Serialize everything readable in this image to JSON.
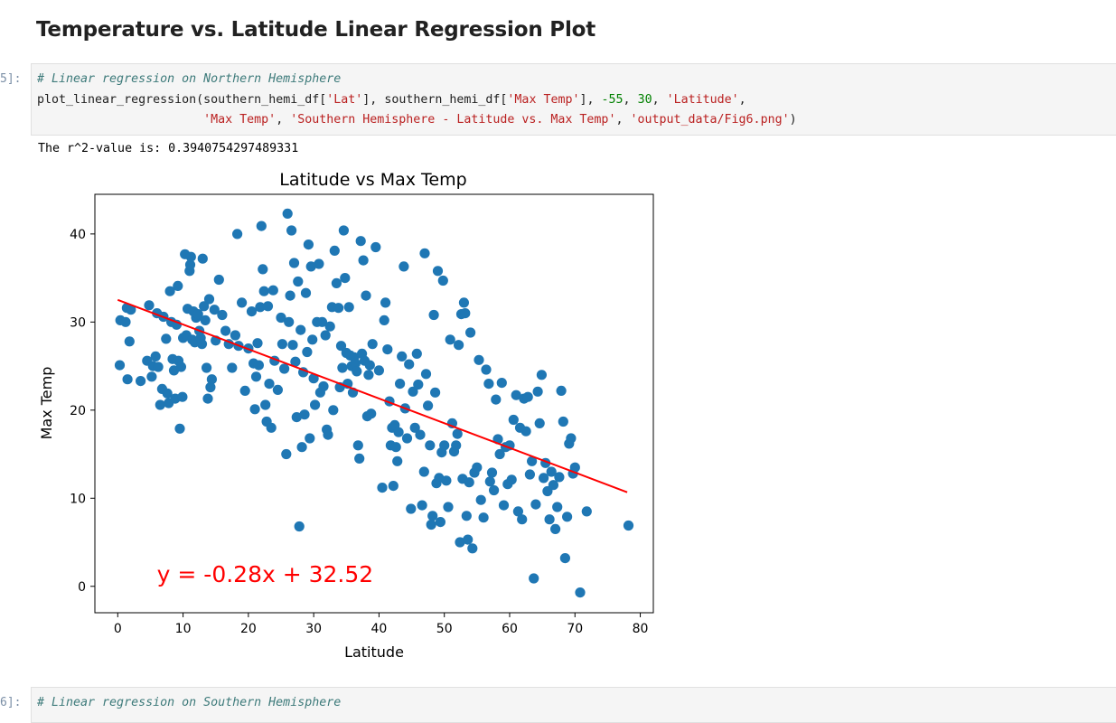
{
  "section_heading": "Temperature vs. Latitude Linear Regression Plot",
  "cell5": {
    "prompt": "5]:",
    "comment": "# Linear regression on Northern Hemisphere",
    "call_name": "plot_linear_regression",
    "arg_df": "southern_hemi_df",
    "arg_lat_key": "'Lat'",
    "arg_temp_key": "'Max Temp'",
    "arg_x_num": "-55",
    "arg_y_num": "30",
    "arg_xlabel": "'Latitude'",
    "arg_ylabel": "'Max Temp'",
    "arg_title": "'Southern Hemisphere - Latitude vs. Max Temp'",
    "arg_path": "'output_data/Fig6.png'"
  },
  "output_text": "The r^2-value is: 0.3940754297489331",
  "cell6": {
    "prompt": "6]:",
    "comment": "# Linear regression on Southern Hemisphere"
  },
  "colors": {
    "points": "#1f77b4",
    "line": "#ff0000",
    "annotation": "#ff0000"
  },
  "chart_data": {
    "type": "scatter",
    "title": "Latitude vs Max Temp",
    "xlabel": "Latitude",
    "ylabel": "Max Temp",
    "xlim": [
      -3.5,
      82
    ],
    "ylim": [
      -3,
      44.5
    ],
    "xticks": [
      0,
      10,
      20,
      30,
      40,
      50,
      60,
      70,
      80
    ],
    "yticks": [
      0,
      10,
      20,
      30,
      40
    ],
    "grid": false,
    "regression": {
      "slope": -0.28,
      "intercept": 32.52,
      "x_range": [
        0,
        78
      ]
    },
    "annotation": {
      "text": "y = -0.28x + 32.52",
      "x": 6,
      "y": 0.5
    },
    "points": [
      [
        0.4,
        30.2
      ],
      [
        0.3,
        25.1
      ],
      [
        1.2,
        30.0
      ],
      [
        1.4,
        31.6
      ],
      [
        1.8,
        27.8
      ],
      [
        2.0,
        31.4
      ],
      [
        1.5,
        23.5
      ],
      [
        3.5,
        23.3
      ],
      [
        4.5,
        25.6
      ],
      [
        4.8,
        31.9
      ],
      [
        5.2,
        23.8
      ],
      [
        5.4,
        25.0
      ],
      [
        5.8,
        26.1
      ],
      [
        6.0,
        31.0
      ],
      [
        6.2,
        24.9
      ],
      [
        6.5,
        20.6
      ],
      [
        6.8,
        22.4
      ],
      [
        7.0,
        30.6
      ],
      [
        7.4,
        28.1
      ],
      [
        7.6,
        21.9
      ],
      [
        7.8,
        20.8
      ],
      [
        8.0,
        33.5
      ],
      [
        8.2,
        30.0
      ],
      [
        8.4,
        25.8
      ],
      [
        8.6,
        24.5
      ],
      [
        8.8,
        21.3
      ],
      [
        9.0,
        29.7
      ],
      [
        9.2,
        34.1
      ],
      [
        9.3,
        25.6
      ],
      [
        9.5,
        17.9
      ],
      [
        9.7,
        24.9
      ],
      [
        9.9,
        21.5
      ],
      [
        10.0,
        28.2
      ],
      [
        10.3,
        37.7
      ],
      [
        10.5,
        28.5
      ],
      [
        10.7,
        31.5
      ],
      [
        11.0,
        35.8
      ],
      [
        11.1,
        36.5
      ],
      [
        11.2,
        37.4
      ],
      [
        11.4,
        28.0
      ],
      [
        11.6,
        31.2
      ],
      [
        11.8,
        27.7
      ],
      [
        12.0,
        30.5
      ],
      [
        12.3,
        30.9
      ],
      [
        12.5,
        29.0
      ],
      [
        12.7,
        28.2
      ],
      [
        12.9,
        27.5
      ],
      [
        13.0,
        37.2
      ],
      [
        13.2,
        31.8
      ],
      [
        13.4,
        30.2
      ],
      [
        13.6,
        24.8
      ],
      [
        13.8,
        21.3
      ],
      [
        14.0,
        32.6
      ],
      [
        14.2,
        22.6
      ],
      [
        14.4,
        23.5
      ],
      [
        14.8,
        31.4
      ],
      [
        15.0,
        27.9
      ],
      [
        15.5,
        34.8
      ],
      [
        16.0,
        30.8
      ],
      [
        16.5,
        29.0
      ],
      [
        17.0,
        27.5
      ],
      [
        17.5,
        24.8
      ],
      [
        18.0,
        28.5
      ],
      [
        18.3,
        40.0
      ],
      [
        18.5,
        27.3
      ],
      [
        19.0,
        32.2
      ],
      [
        19.5,
        22.2
      ],
      [
        20.0,
        27.0
      ],
      [
        20.5,
        31.2
      ],
      [
        20.8,
        25.3
      ],
      [
        21.0,
        20.1
      ],
      [
        21.2,
        23.8
      ],
      [
        21.4,
        27.6
      ],
      [
        21.6,
        25.1
      ],
      [
        21.8,
        31.7
      ],
      [
        22.0,
        40.9
      ],
      [
        22.2,
        36.0
      ],
      [
        22.4,
        33.5
      ],
      [
        22.6,
        20.6
      ],
      [
        22.8,
        18.7
      ],
      [
        23.0,
        31.8
      ],
      [
        23.2,
        23.0
      ],
      [
        23.5,
        18.0
      ],
      [
        23.8,
        33.6
      ],
      [
        24.0,
        25.6
      ],
      [
        24.5,
        22.3
      ],
      [
        25.0,
        30.5
      ],
      [
        25.2,
        27.5
      ],
      [
        25.5,
        24.7
      ],
      [
        25.8,
        15.0
      ],
      [
        26.0,
        42.3
      ],
      [
        26.2,
        30.0
      ],
      [
        26.4,
        33.0
      ],
      [
        26.6,
        40.4
      ],
      [
        26.8,
        27.4
      ],
      [
        27.0,
        36.7
      ],
      [
        27.2,
        25.5
      ],
      [
        27.4,
        19.2
      ],
      [
        27.6,
        34.6
      ],
      [
        27.8,
        6.8
      ],
      [
        28.0,
        29.1
      ],
      [
        28.2,
        15.8
      ],
      [
        28.4,
        24.3
      ],
      [
        28.6,
        19.5
      ],
      [
        28.8,
        33.3
      ],
      [
        29.0,
        26.6
      ],
      [
        29.2,
        38.8
      ],
      [
        29.4,
        16.8
      ],
      [
        29.6,
        36.3
      ],
      [
        29.8,
        28.0
      ],
      [
        30.0,
        23.6
      ],
      [
        30.2,
        20.6
      ],
      [
        30.5,
        30.0
      ],
      [
        30.8,
        36.6
      ],
      [
        31.0,
        22.0
      ],
      [
        31.3,
        30.0
      ],
      [
        31.5,
        22.7
      ],
      [
        31.8,
        28.5
      ],
      [
        32.0,
        17.8
      ],
      [
        32.2,
        17.2
      ],
      [
        32.5,
        29.5
      ],
      [
        32.8,
        31.7
      ],
      [
        33.0,
        20.0
      ],
      [
        33.2,
        38.1
      ],
      [
        33.5,
        34.4
      ],
      [
        33.8,
        31.6
      ],
      [
        34.0,
        22.6
      ],
      [
        34.2,
        27.3
      ],
      [
        34.4,
        24.8
      ],
      [
        34.6,
        40.4
      ],
      [
        34.8,
        35.0
      ],
      [
        35.0,
        26.5
      ],
      [
        35.2,
        23.0
      ],
      [
        35.4,
        31.7
      ],
      [
        35.6,
        26.2
      ],
      [
        35.8,
        25.0
      ],
      [
        36.0,
        22.0
      ],
      [
        36.2,
        26.0
      ],
      [
        36.4,
        25.3
      ],
      [
        36.6,
        24.4
      ],
      [
        36.8,
        16.0
      ],
      [
        37.0,
        14.5
      ],
      [
        37.2,
        39.2
      ],
      [
        37.4,
        26.4
      ],
      [
        37.6,
        37.0
      ],
      [
        37.8,
        25.6
      ],
      [
        38.0,
        33.0
      ],
      [
        38.2,
        19.3
      ],
      [
        38.4,
        24.0
      ],
      [
        38.6,
        25.1
      ],
      [
        38.8,
        19.6
      ],
      [
        39.0,
        27.5
      ],
      [
        39.5,
        38.5
      ],
      [
        40.0,
        24.5
      ],
      [
        40.5,
        11.2
      ],
      [
        40.8,
        30.2
      ],
      [
        41.0,
        32.2
      ],
      [
        41.3,
        26.9
      ],
      [
        41.6,
        21.0
      ],
      [
        41.8,
        16.0
      ],
      [
        42.0,
        18.0
      ],
      [
        42.2,
        11.4
      ],
      [
        42.4,
        18.3
      ],
      [
        42.6,
        15.8
      ],
      [
        42.8,
        14.2
      ],
      [
        43.0,
        17.5
      ],
      [
        43.2,
        23.0
      ],
      [
        43.5,
        26.1
      ],
      [
        43.8,
        36.3
      ],
      [
        44.0,
        20.2
      ],
      [
        44.3,
        16.8
      ],
      [
        44.6,
        25.2
      ],
      [
        44.9,
        8.8
      ],
      [
        45.2,
        22.1
      ],
      [
        45.5,
        18.0
      ],
      [
        45.8,
        26.4
      ],
      [
        46.0,
        22.9
      ],
      [
        46.3,
        17.2
      ],
      [
        46.6,
        9.2
      ],
      [
        46.9,
        13.0
      ],
      [
        47.0,
        37.8
      ],
      [
        47.2,
        24.1
      ],
      [
        47.5,
        20.5
      ],
      [
        47.8,
        16.0
      ],
      [
        48.0,
        7.0
      ],
      [
        48.2,
        8.0
      ],
      [
        48.4,
        30.8
      ],
      [
        48.6,
        22.0
      ],
      [
        48.8,
        11.7
      ],
      [
        49.0,
        35.8
      ],
      [
        49.2,
        12.3
      ],
      [
        49.4,
        7.3
      ],
      [
        49.6,
        15.2
      ],
      [
        49.8,
        34.7
      ],
      [
        50.0,
        16.0
      ],
      [
        50.3,
        12.0
      ],
      [
        50.6,
        9.0
      ],
      [
        50.9,
        28.0
      ],
      [
        51.2,
        18.5
      ],
      [
        51.5,
        15.3
      ],
      [
        51.8,
        16.0
      ],
      [
        52.0,
        17.3
      ],
      [
        52.2,
        27.4
      ],
      [
        52.4,
        5.0
      ],
      [
        52.6,
        30.9
      ],
      [
        52.8,
        12.2
      ],
      [
        53.0,
        32.2
      ],
      [
        53.2,
        31.0
      ],
      [
        53.4,
        8.0
      ],
      [
        53.6,
        5.3
      ],
      [
        53.8,
        11.8
      ],
      [
        54.0,
        28.8
      ],
      [
        54.3,
        4.3
      ],
      [
        54.6,
        12.9
      ],
      [
        55.0,
        13.5
      ],
      [
        55.3,
        25.7
      ],
      [
        55.6,
        9.8
      ],
      [
        56.0,
        7.8
      ],
      [
        56.4,
        24.6
      ],
      [
        56.8,
        23.0
      ],
      [
        57.0,
        11.9
      ],
      [
        57.3,
        12.9
      ],
      [
        57.6,
        10.9
      ],
      [
        57.9,
        21.2
      ],
      [
        58.2,
        16.7
      ],
      [
        58.5,
        15.0
      ],
      [
        58.8,
        23.1
      ],
      [
        59.1,
        9.2
      ],
      [
        59.4,
        15.8
      ],
      [
        59.7,
        11.6
      ],
      [
        60.0,
        16.0
      ],
      [
        60.3,
        12.1
      ],
      [
        60.6,
        18.9
      ],
      [
        61.0,
        21.7
      ],
      [
        61.3,
        8.5
      ],
      [
        61.6,
        18.0
      ],
      [
        61.9,
        7.6
      ],
      [
        62.2,
        21.3
      ],
      [
        62.5,
        17.6
      ],
      [
        62.8,
        21.5
      ],
      [
        63.1,
        12.7
      ],
      [
        63.4,
        14.2
      ],
      [
        63.7,
        0.9
      ],
      [
        64.0,
        9.3
      ],
      [
        64.3,
        22.1
      ],
      [
        64.6,
        18.5
      ],
      [
        64.9,
        24.0
      ],
      [
        65.2,
        12.3
      ],
      [
        65.5,
        14.0
      ],
      [
        65.8,
        10.8
      ],
      [
        66.1,
        7.6
      ],
      [
        66.4,
        13.0
      ],
      [
        66.7,
        11.5
      ],
      [
        67.0,
        6.5
      ],
      [
        67.3,
        9.0
      ],
      [
        67.6,
        12.4
      ],
      [
        67.9,
        22.2
      ],
      [
        68.2,
        18.7
      ],
      [
        68.5,
        3.2
      ],
      [
        68.8,
        7.9
      ],
      [
        69.1,
        16.2
      ],
      [
        69.4,
        16.8
      ],
      [
        69.7,
        12.8
      ],
      [
        70.0,
        13.5
      ],
      [
        70.8,
        -0.7
      ],
      [
        71.8,
        8.5
      ],
      [
        78.2,
        6.9
      ]
    ]
  }
}
